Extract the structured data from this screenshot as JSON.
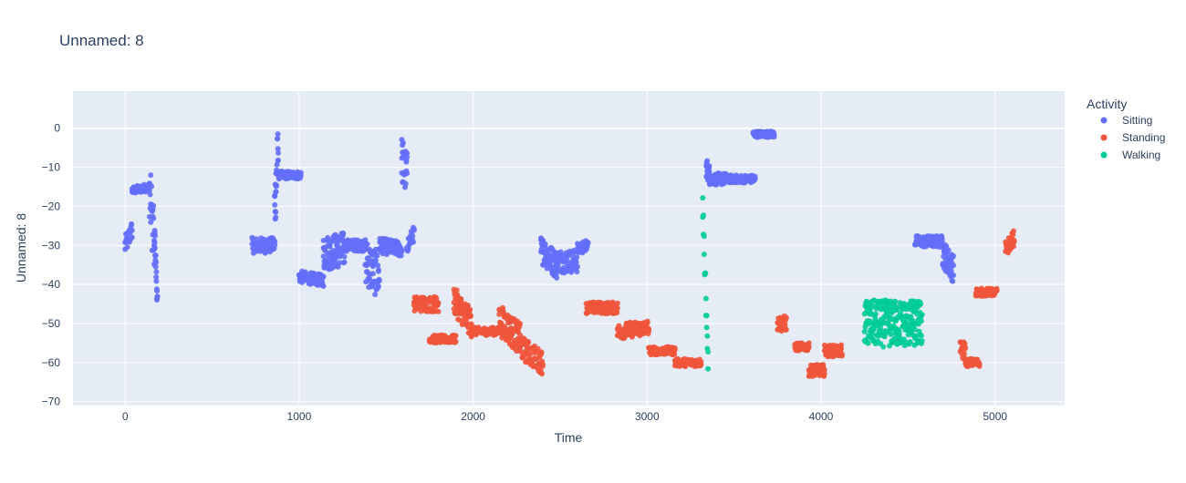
{
  "chart_data": {
    "type": "scatter",
    "title": "Unnamed: 8",
    "xlabel": "Time",
    "ylabel": "Unnamed: 8",
    "xlim": [
      -300,
      5400
    ],
    "ylim": [
      -71,
      9.5
    ],
    "xticks": [
      0,
      1000,
      2000,
      3000,
      4000,
      5000
    ],
    "xtick_labels": [
      "0",
      "1000",
      "2000",
      "3000",
      "4000",
      "5000"
    ],
    "yticks": [
      0,
      -10,
      -20,
      -30,
      -40,
      -50,
      -60,
      -70
    ],
    "ytick_labels": [
      "0",
      "−10",
      "−20",
      "−30",
      "−40",
      "−50",
      "−60",
      "−70"
    ],
    "grid": true,
    "legend": {
      "title": "Activity",
      "placement": "right"
    },
    "series": [
      {
        "name": "Sitting",
        "color": "#636efa",
        "segments": [
          {
            "x": [
              0,
              40
            ],
            "y": [
              -30,
              -26
            ],
            "spread": 5
          },
          {
            "x": [
              40,
              140
            ],
            "y": [
              -16,
              -15
            ],
            "spread": 2
          },
          {
            "x": [
              140,
              170
            ],
            "y": [
              -15,
              -32
            ],
            "spread": 16
          },
          {
            "x": [
              170,
              185
            ],
            "y": [
              -28,
              -45
            ],
            "spread": 6
          },
          {
            "x": [
              730,
              860
            ],
            "y": [
              -30,
              -30
            ],
            "spread": 4
          },
          {
            "x": [
              860,
              880
            ],
            "y": [
              -20,
              -5
            ],
            "spread": 14
          },
          {
            "x": [
              880,
              1010
            ],
            "y": [
              -12,
              -12
            ],
            "spread": 2
          },
          {
            "x": [
              1000,
              1140
            ],
            "y": [
              -38,
              -39
            ],
            "spread": 3
          },
          {
            "x": [
              1140,
              1260
            ],
            "y": [
              -32,
              -31
            ],
            "spread": 9
          },
          {
            "x": [
              1260,
              1380
            ],
            "y": [
              -30,
              -30
            ],
            "spread": 3
          },
          {
            "x": [
              1380,
              1460
            ],
            "y": [
              -34,
              -38
            ],
            "spread": 12
          },
          {
            "x": [
              1460,
              1590
            ],
            "y": [
              -30,
              -31
            ],
            "spread": 4
          },
          {
            "x": [
              1590,
              1620
            ],
            "y": [
              -8,
              -12
            ],
            "spread": 12
          },
          {
            "x": [
              1620,
              1660
            ],
            "y": [
              -30,
              -27
            ],
            "spread": 4
          },
          {
            "x": [
              2390,
              2480
            ],
            "y": [
              -31,
              -35
            ],
            "spread": 7
          },
          {
            "x": [
              2480,
              2600
            ],
            "y": [
              -34,
              -34
            ],
            "spread": 6
          },
          {
            "x": [
              2600,
              2660
            ],
            "y": [
              -31,
              -30
            ],
            "spread": 3
          },
          {
            "x": [
              3340,
              3360
            ],
            "y": [
              -10,
              -12
            ],
            "spread": 5
          },
          {
            "x": [
              3360,
              3460
            ],
            "y": [
              -13,
              -13
            ],
            "spread": 3
          },
          {
            "x": [
              3460,
              3620
            ],
            "y": [
              -13,
              -13
            ],
            "spread": 2
          },
          {
            "x": [
              3610,
              3730
            ],
            "y": [
              -1.5,
              -1.5
            ],
            "spread": 1.6
          },
          {
            "x": [
              4540,
              4700
            ],
            "y": [
              -29,
              -29
            ],
            "spread": 3
          },
          {
            "x": [
              4700,
              4760
            ],
            "y": [
              -32,
              -36
            ],
            "spread": 7
          }
        ]
      },
      {
        "name": "Standing",
        "color": "#ef553b",
        "segments": [
          {
            "x": [
              1660,
              1800
            ],
            "y": [
              -45,
              -45
            ],
            "spread": 4
          },
          {
            "x": [
              1750,
              1900
            ],
            "y": [
              -54,
              -54
            ],
            "spread": 2
          },
          {
            "x": [
              1890,
              1990
            ],
            "y": [
              -44,
              -50
            ],
            "spread": 7
          },
          {
            "x": [
              1990,
              2150
            ],
            "y": [
              -52,
              -52
            ],
            "spread": 2
          },
          {
            "x": [
              2150,
              2270
            ],
            "y": [
              -49,
              -54
            ],
            "spread": 8
          },
          {
            "x": [
              2270,
              2400
            ],
            "y": [
              -56,
              -60
            ],
            "spread": 6
          },
          {
            "x": [
              2650,
              2830
            ],
            "y": [
              -46,
              -46
            ],
            "spread": 3
          },
          {
            "x": [
              2830,
              3010
            ],
            "y": [
              -52,
              -51
            ],
            "spread": 4
          },
          {
            "x": [
              3010,
              3160
            ],
            "y": [
              -57,
              -57
            ],
            "spread": 2
          },
          {
            "x": [
              3160,
              3310
            ],
            "y": [
              -60,
              -60
            ],
            "spread": 2
          },
          {
            "x": [
              3750,
              3800
            ],
            "y": [
              -50,
              -50
            ],
            "spread": 4
          },
          {
            "x": [
              3850,
              3930
            ],
            "y": [
              -56,
              -56
            ],
            "spread": 2
          },
          {
            "x": [
              3930,
              4020
            ],
            "y": [
              -62,
              -62
            ],
            "spread": 3
          },
          {
            "x": [
              4020,
              4120
            ],
            "y": [
              -57,
              -57
            ],
            "spread": 3
          },
          {
            "x": [
              4800,
              4830
            ],
            "y": [
              -57,
              -57
            ],
            "spread": 5
          },
          {
            "x": [
              4830,
              4910
            ],
            "y": [
              -60,
              -60
            ],
            "spread": 2
          },
          {
            "x": [
              4890,
              5010
            ],
            "y": [
              -42,
              -42
            ],
            "spread": 2
          },
          {
            "x": [
              5060,
              5110
            ],
            "y": [
              -31,
              -28
            ],
            "spread": 4
          }
        ]
      },
      {
        "name": "Walking",
        "color": "#00cc96",
        "segments": [
          {
            "x": [
              3320,
              3350
            ],
            "y": [
              -20,
              -60
            ],
            "spread": 6
          },
          {
            "x": [
              4250,
              4580
            ],
            "y": [
              -50,
              -50
            ],
            "spread": 12
          }
        ]
      }
    ]
  }
}
